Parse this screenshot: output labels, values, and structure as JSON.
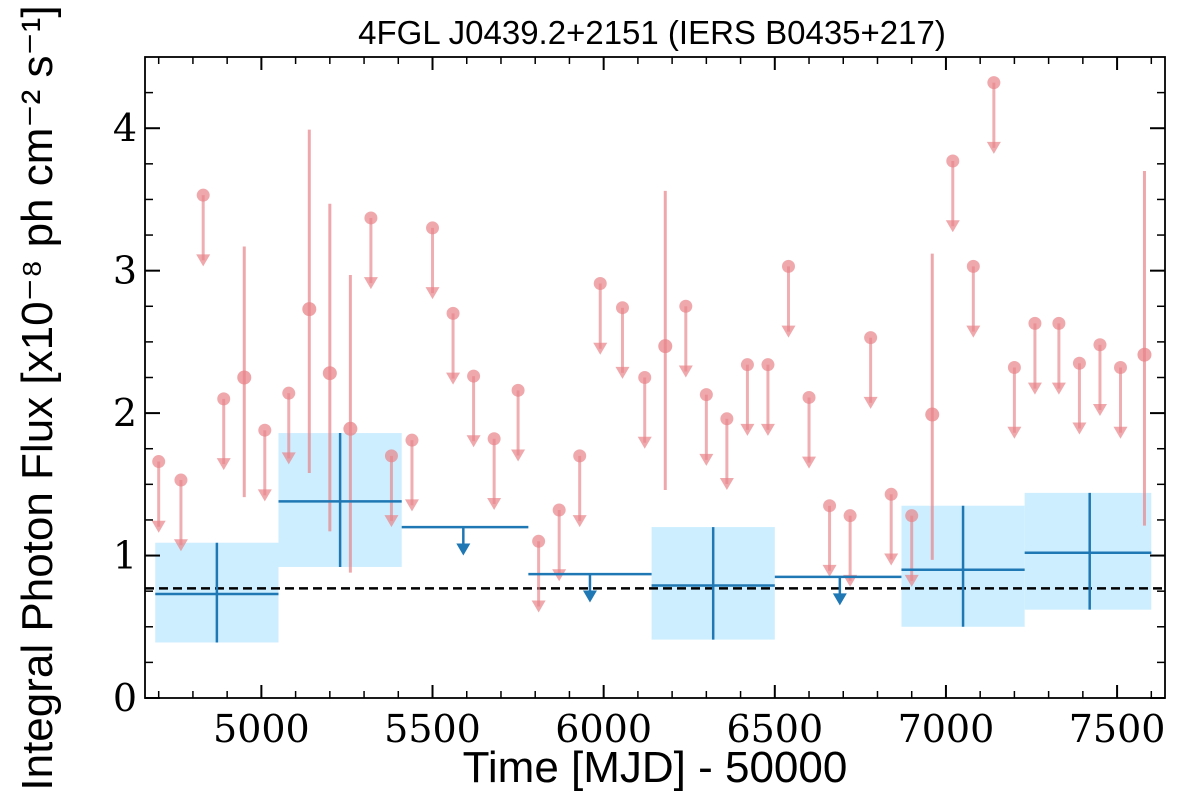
{
  "chart_data": {
    "type": "scatter",
    "title": "4FGL J0439.2+2151 (IERS B0435+217)",
    "xlabel": "Time [MJD] - 50000",
    "ylabel": "Integral Photon Flux [x10⁻⁸ ph cm⁻² s⁻¹]",
    "xlim": [
      4660,
      7640
    ],
    "ylim": [
      0,
      4.5
    ],
    "xticks": [
      5000,
      5500,
      6000,
      6500,
      7000,
      7500
    ],
    "yticks": [
      0,
      1,
      2,
      3,
      4
    ],
    "mean_flux": 0.77,
    "colors": {
      "short_bins": "#e8848a",
      "long_bins": "#1f77b4",
      "band_fill": "#cdeeff",
      "mean_line": "#000000"
    },
    "series": [
      {
        "points": [
          {
            "x": 4950,
            "y": 2.25,
            "yerr": [
              1.41,
              3.17
            ]
          },
          {
            "x": 5140,
            "y": 2.73,
            "yerr": [
              1.58,
              3.99
            ]
          },
          {
            "x": 5200,
            "y": 2.28,
            "yerr": [
              1.17,
              3.47
            ]
          },
          {
            "x": 5260,
            "y": 1.89,
            "yerr": [
              0.88,
              2.97
            ]
          },
          {
            "x": 6180,
            "y": 2.47,
            "yerr": [
              1.46,
              3.56
            ]
          },
          {
            "x": 6960,
            "y": 1.99,
            "yerr": [
              0.97,
              3.12
            ]
          },
          {
            "x": 7580,
            "y": 2.41,
            "yerr": [
              1.21,
              3.7
            ]
          }
        ],
        "upper_limits": [
          {
            "x": 4700,
            "y": 1.66
          },
          {
            "x": 4765,
            "y": 1.53
          },
          {
            "x": 4830,
            "y": 3.53
          },
          {
            "x": 4890,
            "y": 2.1
          },
          {
            "x": 5010,
            "y": 1.88
          },
          {
            "x": 5080,
            "y": 2.14
          },
          {
            "x": 5320,
            "y": 3.37
          },
          {
            "x": 5380,
            "y": 1.7
          },
          {
            "x": 5440,
            "y": 1.81
          },
          {
            "x": 5500,
            "y": 3.3
          },
          {
            "x": 5560,
            "y": 2.7
          },
          {
            "x": 5620,
            "y": 2.26
          },
          {
            "x": 5680,
            "y": 1.82
          },
          {
            "x": 5750,
            "y": 2.16
          },
          {
            "x": 5810,
            "y": 1.1
          },
          {
            "x": 5870,
            "y": 1.32
          },
          {
            "x": 5930,
            "y": 1.7
          },
          {
            "x": 5990,
            "y": 2.91
          },
          {
            "x": 6055,
            "y": 2.74
          },
          {
            "x": 6120,
            "y": 2.25
          },
          {
            "x": 6240,
            "y": 2.75
          },
          {
            "x": 6300,
            "y": 2.13
          },
          {
            "x": 6360,
            "y": 1.96
          },
          {
            "x": 6420,
            "y": 2.34
          },
          {
            "x": 6480,
            "y": 2.34
          },
          {
            "x": 6540,
            "y": 3.03
          },
          {
            "x": 6600,
            "y": 2.11
          },
          {
            "x": 6660,
            "y": 1.35
          },
          {
            "x": 6720,
            "y": 1.28
          },
          {
            "x": 6780,
            "y": 2.53
          },
          {
            "x": 6840,
            "y": 1.43
          },
          {
            "x": 6900,
            "y": 1.28
          },
          {
            "x": 7020,
            "y": 3.77
          },
          {
            "x": 7080,
            "y": 3.03
          },
          {
            "x": 7140,
            "y": 4.32
          },
          {
            "x": 7200,
            "y": 2.32
          },
          {
            "x": 7260,
            "y": 2.63
          },
          {
            "x": 7330,
            "y": 2.63
          },
          {
            "x": 7390,
            "y": 2.35
          },
          {
            "x": 7450,
            "y": 2.48
          },
          {
            "x": 7510,
            "y": 2.32
          }
        ],
        "upper_limit_arrow_length": 0.5
      },
      {
        "bins": [
          {
            "x0": 4690,
            "x1": 5050,
            "x": 4870,
            "y": 0.73,
            "yerr": [
              0.39,
              1.09
            ]
          },
          {
            "x0": 5050,
            "x1": 5410,
            "x": 5230,
            "y": 1.38,
            "yerr": [
              0.92,
              1.86
            ]
          },
          {
            "x0": 6140,
            "x1": 6500,
            "x": 6320,
            "y": 0.79,
            "yerr": [
              0.41,
              1.2
            ]
          },
          {
            "x0": 6870,
            "x1": 7230,
            "x": 7050,
            "y": 0.9,
            "yerr": [
              0.5,
              1.35
            ]
          },
          {
            "x0": 7230,
            "x1": 7600,
            "x": 7420,
            "y": 1.02,
            "yerr": [
              0.62,
              1.44
            ]
          }
        ],
        "upper_limits": [
          {
            "x0": 5410,
            "x1": 5780,
            "x": 5590,
            "y": 1.2
          },
          {
            "x0": 5780,
            "x1": 6140,
            "x": 5960,
            "y": 0.87
          },
          {
            "x0": 6500,
            "x1": 6870,
            "x": 6690,
            "y": 0.85
          }
        ],
        "upper_limit_arrow_length": 0.2
      }
    ]
  }
}
